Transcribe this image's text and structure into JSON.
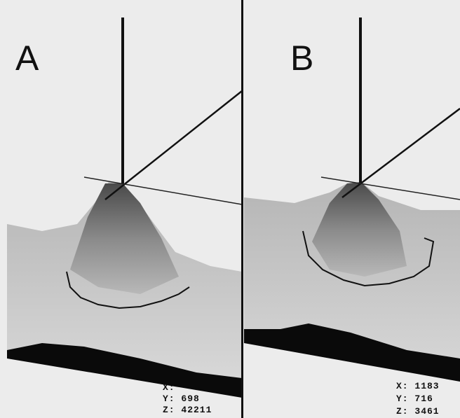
{
  "panels": [
    {
      "label": "A",
      "readout": [
        "X:",
        "Y: 698",
        "Z: 42211"
      ]
    },
    {
      "label": "B",
      "readout": [
        "X: 1183",
        "Y: 716",
        "Z: 3461"
      ]
    }
  ]
}
